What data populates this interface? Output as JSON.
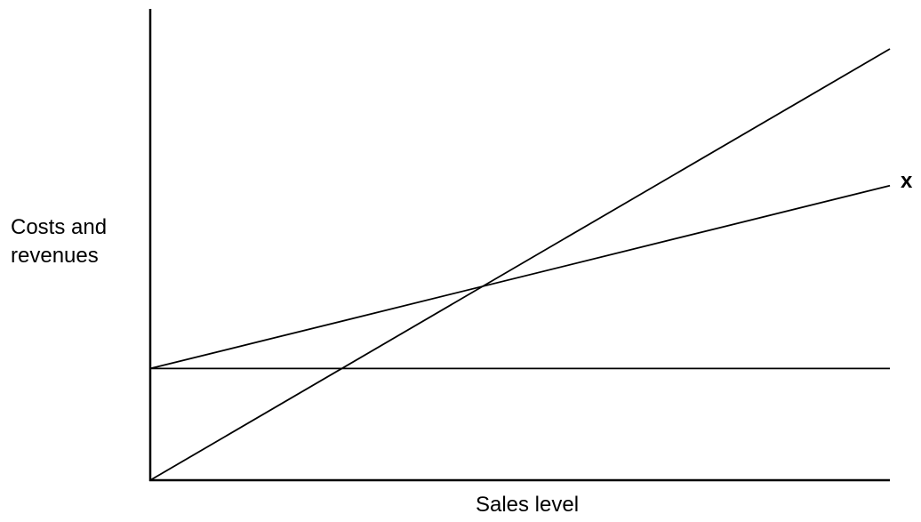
{
  "chart_data": {
    "type": "line",
    "title": "",
    "xlabel": "Sales level",
    "ylabel": "Costs and\nrevenues",
    "xlim": [
      0,
      100
    ],
    "ylim": [
      0,
      100
    ],
    "axes_ticks": false,
    "grid": false,
    "series": [
      {
        "name": "",
        "x": [
          0,
          100
        ],
        "y": [
          0,
          91.5
        ]
      },
      {
        "name": "x",
        "x": [
          0,
          100
        ],
        "y": [
          23.7,
          62.5
        ]
      },
      {
        "name": "",
        "x": [
          0,
          100
        ],
        "y": [
          23.7,
          23.7
        ]
      }
    ],
    "colors": {
      "line": "#000000",
      "axis": "#000000",
      "background": "#ffffff"
    }
  }
}
